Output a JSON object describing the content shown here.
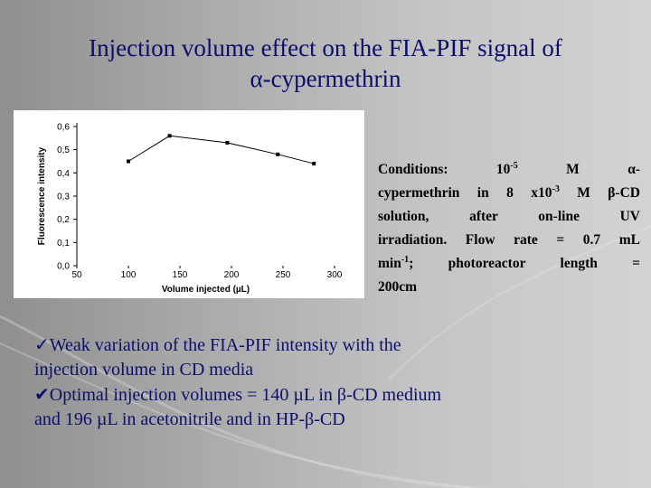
{
  "title": {
    "line1": "Injection volume effect on the FIA-PIF signal of",
    "line2": "α-cypermethrin"
  },
  "chart_data": {
    "type": "line",
    "xlabel": "Volume injected (µL)",
    "ylabel": "Fluorescence intensity",
    "xlim": [
      50,
      300
    ],
    "ylim": [
      0,
      0.6
    ],
    "x_ticks": [
      "50",
      "100",
      "150",
      "200",
      "250",
      "300"
    ],
    "y_ticks": [
      "0,0",
      "0,1",
      "0,2",
      "0,3",
      "0,4",
      "0,5",
      "0,6"
    ],
    "grid": false,
    "series": [
      {
        "x": [
          100,
          140,
          196,
          245,
          280
        ],
        "y": [
          0.45,
          0.56,
          0.53,
          0.48,
          0.44
        ]
      }
    ],
    "colors": {
      "line": "#000000",
      "marker": "#000000"
    }
  },
  "conditions": {
    "l1a": "Conditions:",
    "l1b": "10",
    "l1b_exp": "-5",
    "l1c": "M",
    "l1d": "α-",
    "l2a": "cypermethrin in 8 x10",
    "l2a_exp": "-3",
    "l2b": " M β-CD",
    "l3": "solution, after on-line UV",
    "l4": "irradiation. Flow rate = 0.7 mL",
    "l5a": "min",
    "l5a_exp": "-1",
    "l5b": "; photoreactor length =",
    "l6": "200cm"
  },
  "bullets": [
    {
      "mark": "✓",
      "text_line1": "Weak variation of the FIA-PIF intensity with the",
      "text_line2": "injection volume in CD media"
    },
    {
      "mark": "✔",
      "text_line1": "Optimal injection volumes = 140 µL in β-CD medium",
      "text_line2": "and 196 µL in acetonitrile and in HP-β-CD"
    }
  ]
}
